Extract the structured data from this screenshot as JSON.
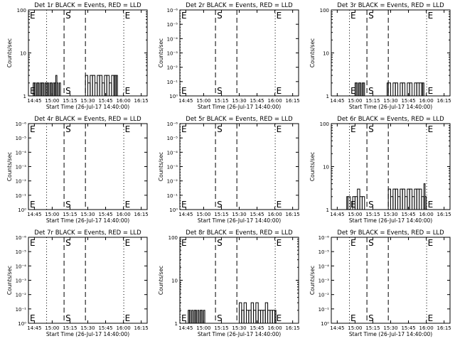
{
  "chart_data": [
    {
      "type": "line",
      "title": "Det 1r BLACK = Events, RED = LLD",
      "xlabel": "Start Time (26-Jul-17 14:40:00)",
      "ylabel": "Counts/sec",
      "x_ticks": [
        "14:45",
        "15:00",
        "15:15",
        "15:30",
        "15:45",
        "16:00",
        "16:15"
      ],
      "yscale": "log",
      "y_ticks": [
        "1",
        "10",
        "100"
      ],
      "xlim_minutes": [
        0,
        100
      ],
      "ylim_log10": [
        0,
        2
      ],
      "dotted_lines_minutes": [
        15,
        80
      ],
      "dashed_lines_minutes": [
        30,
        48
      ],
      "markers": [
        {
          "label": "E",
          "x_minutes": 0
        },
        {
          "label": "S",
          "x_minutes": 30
        },
        {
          "label": "E",
          "x_minutes": 80
        }
      ],
      "series": [
        {
          "x_minutes": [
            4,
            5,
            6,
            7,
            8,
            9,
            10,
            11,
            12,
            13,
            14,
            15,
            16,
            17,
            18,
            19,
            20,
            21,
            22,
            23,
            24,
            25,
            26,
            27,
            28,
            46,
            48,
            50,
            52,
            54,
            56,
            58,
            60,
            62,
            64,
            66,
            68,
            70,
            72,
            73,
            74,
            75
          ],
          "values": [
            2,
            2,
            1,
            2,
            2,
            1,
            2,
            2,
            2,
            1,
            2,
            2,
            2,
            1,
            2,
            2,
            1,
            2,
            2,
            3,
            2,
            1,
            2,
            1,
            1,
            1,
            3,
            2,
            3,
            3,
            2,
            3,
            3,
            2,
            3,
            3,
            2,
            3,
            3,
            3,
            3,
            1
          ]
        }
      ]
    },
    {
      "type": "line",
      "title": "Det 2r BLACK = Events, RED = LLD",
      "xlabel": "Start Time (26-Jul-17 14:40:00)",
      "ylabel": "Counts/sec",
      "x_ticks": [
        "14:45",
        "15:00",
        "15:15",
        "15:30",
        "15:45",
        "16:00",
        "16:15"
      ],
      "yscale": "log",
      "y_ticks": [
        "10⁰",
        "10⁻¹",
        "10⁻²",
        "10⁻³",
        "10⁻⁴",
        "10⁻⁵",
        "10⁻⁶"
      ],
      "xlim_minutes": [
        0,
        100
      ],
      "ylim_log10": [
        0,
        6
      ],
      "dotted_lines_minutes": [
        0,
        80
      ],
      "dashed_lines_minutes": [
        30,
        48
      ],
      "markers": [
        {
          "label": "E",
          "x_minutes": 0
        },
        {
          "label": "S",
          "x_minutes": 30
        },
        {
          "label": "E",
          "x_minutes": 80
        }
      ],
      "series": []
    },
    {
      "type": "line",
      "title": "Det 3r BLACK = Events, RED = LLD",
      "xlabel": "Start Time (26-Jul-17 14:40:00)",
      "ylabel": "Counts/sec",
      "x_ticks": [
        "14:45",
        "15:00",
        "15:15",
        "15:30",
        "15:45",
        "16:00",
        "16:15"
      ],
      "yscale": "log",
      "y_ticks": [
        "1",
        "10",
        "100"
      ],
      "xlim_minutes": [
        0,
        100
      ],
      "ylim_log10": [
        0,
        2
      ],
      "dotted_lines_minutes": [
        15,
        80
      ],
      "dashed_lines_minutes": [
        30,
        48
      ],
      "markers": [
        {
          "label": "E",
          "x_minutes": 15
        },
        {
          "label": "S",
          "x_minutes": 30
        },
        {
          "label": "E",
          "x_minutes": 80
        }
      ],
      "series": [
        {
          "x_minutes": [
            20,
            21,
            22,
            23,
            24,
            25,
            26,
            27,
            28,
            46,
            47,
            48,
            50,
            52,
            54,
            56,
            58,
            60,
            62,
            64,
            66,
            68,
            70,
            72,
            74,
            76,
            77,
            78
          ],
          "values": [
            2,
            2,
            1,
            2,
            2,
            1,
            2,
            2,
            1,
            1,
            2,
            2,
            1,
            2,
            2,
            1,
            2,
            2,
            1,
            2,
            2,
            1,
            2,
            2,
            2,
            2,
            2,
            1
          ]
        }
      ]
    },
    {
      "type": "line",
      "title": "Det 4r BLACK = Events, RED = LLD",
      "xlabel": "Start Time (26-Jul-17 14:40:00)",
      "ylabel": "Counts/sec",
      "x_ticks": [
        "14:45",
        "15:00",
        "15:15",
        "15:30",
        "15:45",
        "16:00",
        "16:15"
      ],
      "yscale": "log",
      "y_ticks": [
        "10⁰",
        "10⁻¹",
        "10⁻²",
        "10⁻³",
        "10⁻⁴",
        "10⁻⁵",
        "10⁻⁶"
      ],
      "xlim_minutes": [
        0,
        100
      ],
      "ylim_log10": [
        0,
        6
      ],
      "dotted_lines_minutes": [
        15,
        80
      ],
      "dashed_lines_minutes": [
        30,
        48
      ],
      "markers": [
        {
          "label": "E",
          "x_minutes": 0
        },
        {
          "label": "S",
          "x_minutes": 30
        },
        {
          "label": "E",
          "x_minutes": 80
        }
      ],
      "series": []
    },
    {
      "type": "line",
      "title": "Det 5r BLACK = Events, RED = LLD",
      "xlabel": "Start Time (26-Jul-17 14:40:00)",
      "ylabel": "Counts/sec",
      "x_ticks": [
        "14:45",
        "15:00",
        "15:15",
        "15:30",
        "15:45",
        "16:00",
        "16:15"
      ],
      "yscale": "log",
      "y_ticks": [
        "10⁰",
        "10⁻¹",
        "10⁻²",
        "10⁻³",
        "10⁻⁴",
        "10⁻⁵",
        "10⁻⁶"
      ],
      "xlim_minutes": [
        0,
        100
      ],
      "ylim_log10": [
        0,
        6
      ],
      "dotted_lines_minutes": [
        0,
        80
      ],
      "dashed_lines_minutes": [
        30,
        48
      ],
      "markers": [
        {
          "label": "E",
          "x_minutes": 0
        },
        {
          "label": "S",
          "x_minutes": 30
        },
        {
          "label": "E",
          "x_minutes": 80
        }
      ],
      "series": []
    },
    {
      "type": "line",
      "title": "Det 6r BLACK = Events, RED = LLD",
      "xlabel": "Start Time (26-Jul-17 14:40:00)",
      "ylabel": "Counts/sec",
      "x_ticks": [
        "14:45",
        "15:00",
        "15:15",
        "15:30",
        "15:45",
        "16:00",
        "16:15"
      ],
      "yscale": "log",
      "y_ticks": [
        "1",
        "10",
        "100"
      ],
      "xlim_minutes": [
        0,
        100
      ],
      "ylim_log10": [
        0,
        2
      ],
      "dotted_lines_minutes": [
        15,
        80
      ],
      "dashed_lines_minutes": [
        30,
        48
      ],
      "markers": [
        {
          "label": "E",
          "x_minutes": 15
        },
        {
          "label": "S",
          "x_minutes": 30
        },
        {
          "label": "E",
          "x_minutes": 80
        }
      ],
      "series": [
        {
          "x_minutes": [
            12,
            13,
            14,
            16,
            18,
            20,
            22,
            24,
            26,
            28,
            46,
            48,
            50,
            52,
            54,
            56,
            58,
            60,
            62,
            64,
            66,
            68,
            70,
            72,
            74,
            76,
            78,
            79,
            80
          ],
          "values": [
            1,
            2,
            2,
            1,
            2,
            2,
            3,
            2,
            2,
            1,
            1,
            3,
            2,
            3,
            3,
            2,
            3,
            3,
            2,
            3,
            3,
            2,
            3,
            3,
            3,
            2,
            4,
            2,
            1
          ]
        }
      ]
    },
    {
      "type": "line",
      "title": "Det 7r BLACK = Events, RED = LLD",
      "xlabel": "Start Time (26-Jul-17 14:40:00)",
      "ylabel": "Counts/sec",
      "x_ticks": [
        "14:45",
        "15:00",
        "15:15",
        "15:30",
        "15:45",
        "16:00",
        "16:15"
      ],
      "yscale": "log",
      "y_ticks": [
        "10⁰",
        "10⁻¹",
        "10⁻²",
        "10⁻³",
        "10⁻⁴",
        "10⁻⁵",
        "10⁻⁶"
      ],
      "xlim_minutes": [
        0,
        100
      ],
      "ylim_log10": [
        0,
        6
      ],
      "dotted_lines_minutes": [
        15,
        80
      ],
      "dashed_lines_minutes": [
        30,
        48
      ],
      "markers": [
        {
          "label": "E",
          "x_minutes": 0
        },
        {
          "label": "S",
          "x_minutes": 30
        },
        {
          "label": "E",
          "x_minutes": 80
        }
      ],
      "series": []
    },
    {
      "type": "line",
      "title": "Det 8r BLACK = Events, RED = LLD",
      "xlabel": "Start Time (26-Jul-17 14:40:00)",
      "ylabel": "Counts/sec",
      "x_ticks": [
        "14:45",
        "15:00",
        "15:15",
        "15:30",
        "15:45",
        "16:00",
        "16:15"
      ],
      "yscale": "log",
      "y_ticks": [
        "1",
        "10",
        "100"
      ],
      "xlim_minutes": [
        0,
        100
      ],
      "ylim_log10": [
        0,
        2
      ],
      "dotted_lines_minutes": [
        0,
        80
      ],
      "dashed_lines_minutes": [
        30,
        48
      ],
      "markers": [
        {
          "label": "E",
          "x_minutes": 0
        },
        {
          "label": "S",
          "x_minutes": 30
        },
        {
          "label": "E",
          "x_minutes": 80
        }
      ],
      "series": [
        {
          "x_minutes": [
            7,
            8,
            9,
            10,
            11,
            12,
            13,
            14,
            15,
            16,
            17,
            18,
            19,
            20,
            21,
            49,
            50,
            52,
            54,
            56,
            58,
            60,
            62,
            64,
            66,
            68,
            70,
            72,
            74,
            76,
            78,
            80
          ],
          "values": [
            2,
            2,
            1,
            2,
            1,
            2,
            2,
            1,
            2,
            1,
            2,
            2,
            1,
            2,
            1,
            1,
            3,
            2,
            3,
            2,
            2,
            3,
            2,
            3,
            2,
            2,
            2,
            3,
            2,
            2,
            2,
            2
          ]
        }
      ]
    },
    {
      "type": "line",
      "title": "Det 9r BLACK = Events, RED = LLD",
      "xlabel": "Start Time (26-Jul-17 14:40:00)",
      "ylabel": "Counts/sec",
      "x_ticks": [
        "14:45",
        "15:00",
        "15:15",
        "15:30",
        "15:45",
        "16:00",
        "16:15"
      ],
      "yscale": "log",
      "y_ticks": [
        "10⁰",
        "10⁻¹",
        "10⁻²",
        "10⁻³",
        "10⁻⁴",
        "10⁻⁵",
        "10⁻⁶"
      ],
      "xlim_minutes": [
        0,
        100
      ],
      "ylim_log10": [
        0,
        6
      ],
      "dotted_lines_minutes": [
        15,
        80
      ],
      "dashed_lines_minutes": [
        30,
        48
      ],
      "markers": [
        {
          "label": "E",
          "x_minutes": 15
        },
        {
          "label": "S",
          "x_minutes": 30
        },
        {
          "label": "E",
          "x_minutes": 80
        }
      ],
      "series": []
    }
  ]
}
